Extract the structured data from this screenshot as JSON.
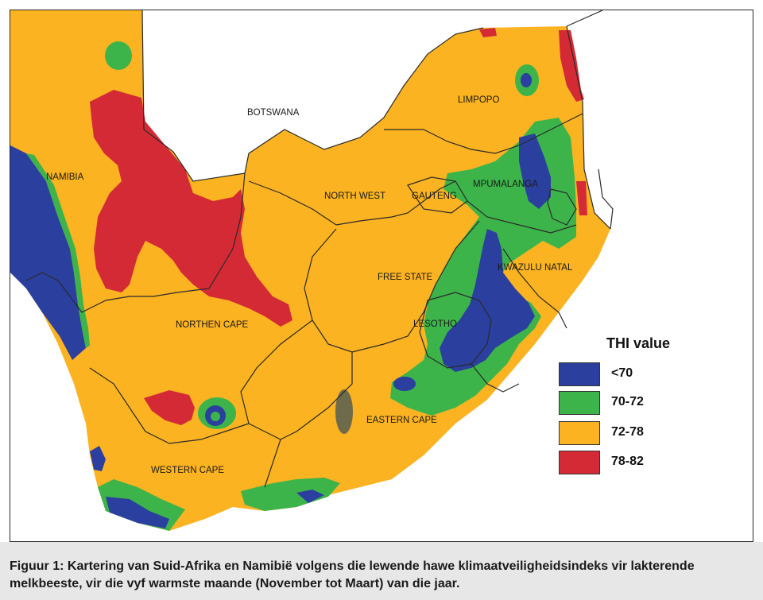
{
  "colors": {
    "thi_below_70": "#2b3f9e",
    "thi_70_72": "#3cb44a",
    "thi_72_78": "#fbb321",
    "thi_78_82": "#d42a35",
    "outside": "#ffffff",
    "border_line": "#2a2a2a",
    "highland_gray": "#6e6b4d"
  },
  "map": {
    "region_labels": {
      "namibia": "NAMIBIA",
      "botswana": "BOTSWANA",
      "limpopo": "LIMPOPO",
      "north_west": "NORTH WEST",
      "gauteng": "GAUTENG",
      "mpumalanga": "MPUMALANGA",
      "free_state": "FREE STATE",
      "kwazulu_natal": "KWAZULU NATAL",
      "lesotho": "LESOTHO",
      "northern_cape": "NORTHEN CAPE",
      "eastern_cape": "EASTERN CAPE",
      "western_cape": "WESTERN CAPE"
    }
  },
  "legend": {
    "title": "THI value",
    "items": [
      {
        "label": "<70",
        "color": "#2b3f9e"
      },
      {
        "label": "70-72",
        "color": "#3cb44a"
      },
      {
        "label": "72-78",
        "color": "#fbb321"
      },
      {
        "label": "78-82",
        "color": "#d42a35"
      }
    ]
  },
  "caption": "Figuur 1: Kartering van Suid-Afrika en Namibië volgens die lewende hawe klimaatveiligheidsindeks vir lakterende melkbeeste, vir die vyf warmste maande (November tot Maart) van die jaar."
}
